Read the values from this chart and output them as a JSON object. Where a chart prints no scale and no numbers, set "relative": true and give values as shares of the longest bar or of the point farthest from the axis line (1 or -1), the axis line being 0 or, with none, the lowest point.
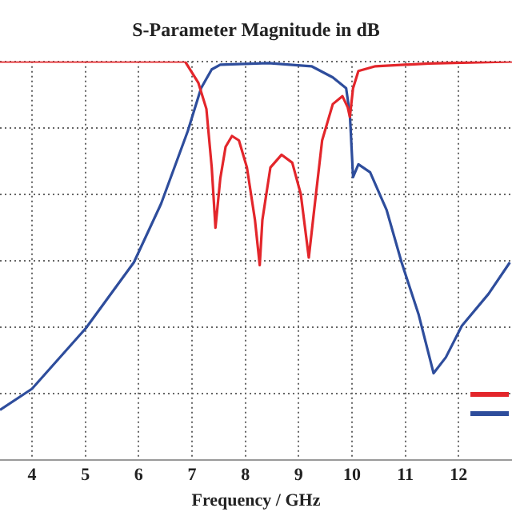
{
  "chart_data": {
    "type": "line",
    "title": "S-Parameter Magnitude in dB",
    "xlabel": "Frequency / GHz",
    "relative": true,
    "xlim": [
      3.4,
      13
    ],
    "xticks": [
      4,
      5,
      6,
      7,
      8,
      9,
      10,
      11,
      12
    ],
    "grid": true,
    "marker": "none",
    "line_style": "solid",
    "series": [
      {
        "color": "#e3262b",
        "x": [
          3.4,
          6.87,
          7.12,
          7.27,
          7.37,
          7.44,
          7.53,
          7.63,
          7.75,
          7.88,
          8.03,
          8.18,
          8.27,
          8.32,
          8.47,
          8.68,
          8.88,
          9.04,
          9.19,
          9.29,
          9.44,
          9.64,
          9.82,
          9.92,
          9.96,
          10.02,
          10.12,
          10.44,
          11.45,
          13
        ],
        "values": [
          1,
          1,
          0.946,
          0.881,
          0.734,
          0.583,
          0.706,
          0.786,
          0.813,
          0.802,
          0.734,
          0.603,
          0.489,
          0.603,
          0.734,
          0.766,
          0.746,
          0.667,
          0.508,
          0.627,
          0.802,
          0.893,
          0.913,
          0.885,
          0.861,
          0.933,
          0.976,
          0.988,
          0.995,
          1
        ]
      },
      {
        "color": "#2e4d9c",
        "x": [
          3.4,
          4,
          5.01,
          5.91,
          6.42,
          6.92,
          7.17,
          7.37,
          7.53,
          8.43,
          9.24,
          9.64,
          9.89,
          9.96,
          10.02,
          10.12,
          10.34,
          10.65,
          10.93,
          11.25,
          11.53,
          11.76,
          12.06,
          12.56,
          12.96
        ],
        "values": [
          0.126,
          0.179,
          0.331,
          0.496,
          0.643,
          0.825,
          0.933,
          0.98,
          0.992,
          0.996,
          0.988,
          0.96,
          0.933,
          0.867,
          0.71,
          0.742,
          0.722,
          0.627,
          0.496,
          0.365,
          0.218,
          0.258,
          0.337,
          0.417,
          0.496
        ]
      }
    ]
  }
}
